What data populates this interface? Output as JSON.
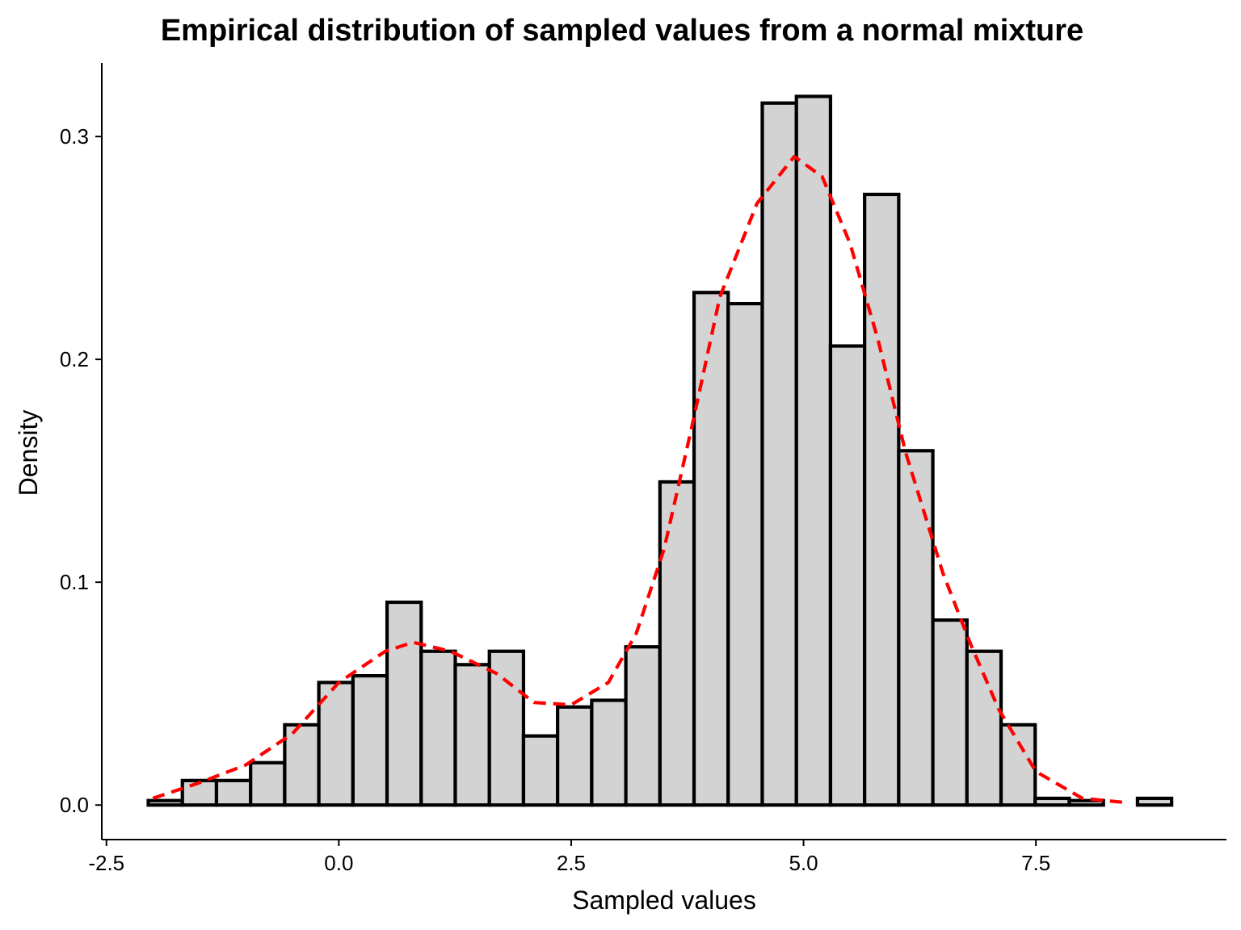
{
  "chart_data": {
    "type": "bar",
    "title": "Empirical distribution of sampled values from a normal mixture",
    "xlabel": "Sampled values",
    "ylabel": "Density",
    "xlim": [
      -2.55,
      9.55
    ],
    "ylim": [
      -0.0155,
      0.333
    ],
    "x_ticks": [
      -2.5,
      0.0,
      2.5,
      5.0,
      7.5
    ],
    "x_tick_labels": [
      "-2.5",
      "0.0",
      "2.5",
      "5.0",
      "7.5"
    ],
    "y_ticks": [
      0.0,
      0.1,
      0.2,
      0.3
    ],
    "y_tick_labels": [
      "0.0",
      "0.1",
      "0.2",
      "0.3"
    ],
    "grid": false,
    "bar_fill": "#d3d3d3",
    "bar_stroke": "#000000",
    "bins": {
      "start": -2.05,
      "width": 0.367,
      "density": [
        0.002,
        0.011,
        0.011,
        0.019,
        0.036,
        0.055,
        0.058,
        0.091,
        0.069,
        0.063,
        0.069,
        0.031,
        0.044,
        0.047,
        0.071,
        0.145,
        0.23,
        0.225,
        0.315,
        0.318,
        0.206,
        0.274,
        0.159,
        0.083,
        0.069,
        0.036,
        0.003,
        0.002,
        0.0,
        0.003
      ]
    },
    "series": [
      {
        "type": "line",
        "style": "dashed",
        "color": "#ff0000",
        "x": [
          -2.0,
          -1.5,
          -1.0,
          -0.5,
          0.0,
          0.5,
          0.8,
          1.2,
          1.7,
          2.1,
          2.5,
          2.9,
          3.2,
          3.5,
          3.8,
          4.1,
          4.5,
          4.9,
          5.2,
          5.5,
          5.8,
          6.1,
          6.5,
          6.8,
          7.1,
          7.5,
          8.0,
          8.5
        ],
        "y": [
          0.003,
          0.01,
          0.018,
          0.032,
          0.055,
          0.069,
          0.073,
          0.069,
          0.059,
          0.046,
          0.045,
          0.055,
          0.077,
          0.115,
          0.17,
          0.228,
          0.27,
          0.291,
          0.282,
          0.252,
          0.209,
          0.158,
          0.104,
          0.072,
          0.043,
          0.015,
          0.003,
          0.001
        ]
      }
    ]
  }
}
